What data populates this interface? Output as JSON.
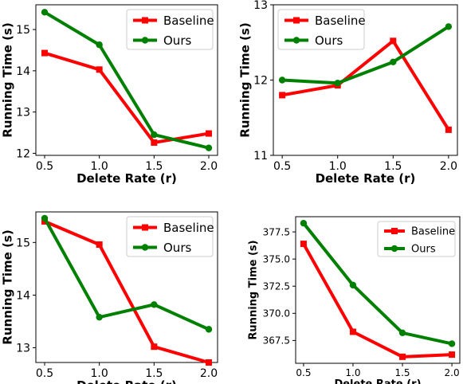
{
  "chart_data": [
    {
      "type": "line",
      "x": [
        0.5,
        1.0,
        1.5,
        2.0
      ],
      "xticks": [
        "0.5",
        "1.0",
        "1.5",
        "2.0"
      ],
      "xlim": [
        0.42,
        2.08
      ],
      "yticks": [
        12,
        13,
        14,
        15
      ],
      "ytick_labels": [
        "12",
        "13",
        "14",
        "15"
      ],
      "ylim": [
        11.95,
        15.6
      ],
      "xlabel": "Delete Rate (r)",
      "ylabel": "Running Time (s)",
      "legend_position": "top-right",
      "series": [
        {
          "name": "Baseline",
          "color": "#ff0000",
          "marker": "square",
          "values": [
            14.43,
            14.03,
            12.26,
            12.48
          ]
        },
        {
          "name": "Ours",
          "color": "#008000",
          "marker": "circle",
          "values": [
            15.42,
            14.63,
            12.45,
            12.13
          ]
        }
      ]
    },
    {
      "type": "line",
      "x": [
        0.5,
        1.0,
        1.5,
        2.0
      ],
      "xticks": [
        "0.5",
        "1.0",
        "1.5",
        "2.0"
      ],
      "xlim": [
        0.42,
        2.08
      ],
      "yticks": [
        11,
        12,
        13
      ],
      "ytick_labels": [
        "11",
        "12",
        "13"
      ],
      "ylim": [
        11.0,
        13.0
      ],
      "xlabel": "Delete Rate (r)",
      "ylabel": "Running Time (s)",
      "legend_position": "top-left",
      "series": [
        {
          "name": "Baseline",
          "color": "#ff0000",
          "marker": "square",
          "values": [
            11.8,
            11.93,
            12.52,
            11.34
          ]
        },
        {
          "name": "Ours",
          "color": "#008000",
          "marker": "circle",
          "values": [
            12.0,
            11.96,
            12.24,
            12.71
          ]
        }
      ]
    },
    {
      "type": "line",
      "x": [
        0.5,
        1.0,
        1.5,
        2.0
      ],
      "xticks": [
        "0.5",
        "1.0",
        "1.5",
        "2.0"
      ],
      "xlim": [
        0.42,
        2.08
      ],
      "yticks": [
        13,
        14,
        15
      ],
      "ytick_labels": [
        "13",
        "14",
        "15"
      ],
      "ylim": [
        12.72,
        15.58
      ],
      "xlabel": "Delete Rate (r)",
      "ylabel": "Running Time (s)",
      "legend_position": "top-right",
      "series": [
        {
          "name": "Baseline",
          "color": "#ff0000",
          "marker": "square",
          "values": [
            15.4,
            14.96,
            13.02,
            12.72
          ]
        },
        {
          "name": "Ours",
          "color": "#008000",
          "marker": "circle",
          "values": [
            15.46,
            13.58,
            13.82,
            13.35
          ]
        }
      ]
    },
    {
      "type": "line",
      "x": [
        0.5,
        1.0,
        1.5,
        2.0
      ],
      "xticks": [
        "0.5",
        "1.0",
        "1.5",
        "2.0"
      ],
      "xlim": [
        0.42,
        2.08
      ],
      "yticks": [
        367.5,
        370.0,
        372.5,
        375.0,
        377.5
      ],
      "ytick_labels": [
        "367.5",
        "370.0",
        "372.5",
        "375.0",
        "377.5"
      ],
      "ylim": [
        365.4,
        378.9
      ],
      "xlabel": "Delete Rate (r)",
      "ylabel": "Running Time (s)",
      "legend_position": "top-right",
      "series": [
        {
          "name": "Baseline",
          "color": "#ff0000",
          "marker": "square",
          "values": [
            376.4,
            368.3,
            366.0,
            366.2
          ]
        },
        {
          "name": "Ours",
          "color": "#008000",
          "marker": "circle",
          "values": [
            378.3,
            372.6,
            368.2,
            367.2
          ]
        }
      ]
    }
  ]
}
